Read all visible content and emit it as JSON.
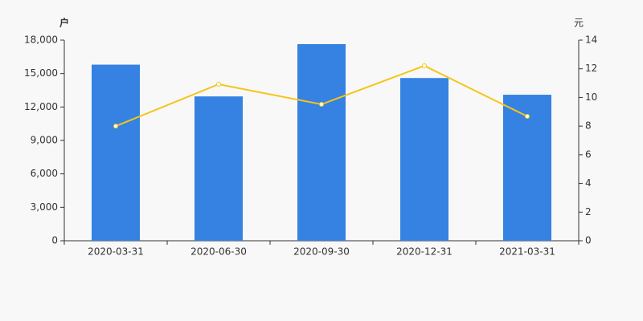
{
  "chart_data": {
    "type": "combo",
    "y_label": "户",
    "y2_label": "元",
    "categories": [
      "2020-03-31",
      "2020-06-30",
      "2020-09-30",
      "2020-12-31",
      "2021-03-31"
    ],
    "series": [
      {
        "type": "bar",
        "color": "#3582e2",
        "values": [
          15800,
          12950,
          17640,
          14600,
          13100
        ]
      },
      {
        "type": "line",
        "axis": "y2",
        "color": "#f5c518",
        "values": [
          8.0,
          10.92,
          9.52,
          12.21,
          8.68
        ]
      }
    ],
    "ylim": [
      0,
      18000
    ],
    "yticks": [
      0,
      {
        "value": 3000,
        "label": "3,000"
      },
      {
        "value": 6000,
        "label": "6,000"
      },
      {
        "value": 9000,
        "label": "9,000"
      },
      {
        "value": 12000,
        "label": "12,000"
      },
      {
        "value": 15000,
        "label": "15,000"
      },
      {
        "value": 18000,
        "label": "18,000"
      }
    ],
    "y2lim": [
      0,
      14
    ],
    "y2ticks": [
      0,
      2,
      4,
      6,
      8,
      10,
      12,
      14
    ]
  }
}
